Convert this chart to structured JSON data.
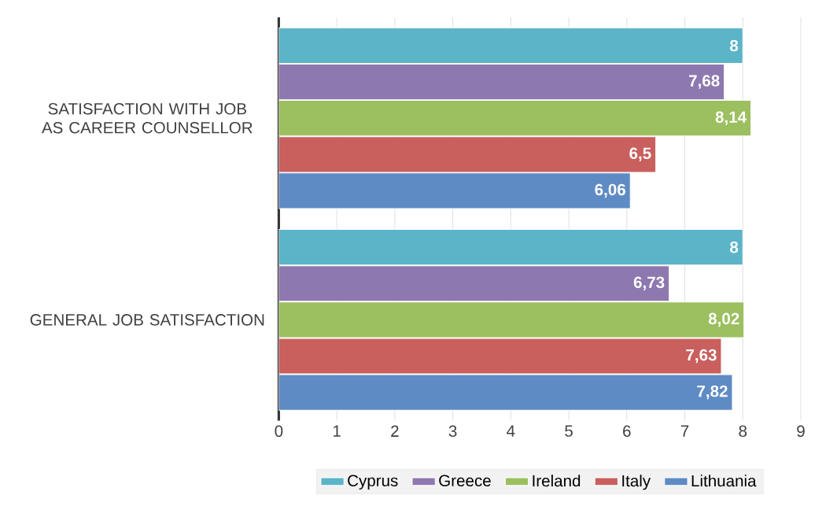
{
  "chart_data": {
    "type": "bar",
    "orientation": "horizontal",
    "categories": [
      "SATISFACTION WITH JOB AS CAREER COUNSELLOR",
      "GENERAL JOB SATISFACTION"
    ],
    "series": [
      {
        "name": "Cyprus",
        "color": "#5bb4c8",
        "values": [
          8,
          8
        ],
        "value_labels": [
          "8",
          "8"
        ]
      },
      {
        "name": "Greece",
        "color": "#8e78b0",
        "values": [
          7.68,
          6.73
        ],
        "value_labels": [
          "7,68",
          "6,73"
        ]
      },
      {
        "name": "Ireland",
        "color": "#9cbf60",
        "values": [
          8.14,
          8.02
        ],
        "value_labels": [
          "8,14",
          "8,02"
        ]
      },
      {
        "name": "Italy",
        "color": "#c9605e",
        "values": [
          6.5,
          7.63
        ],
        "value_labels": [
          "6,5",
          "7,63"
        ]
      },
      {
        "name": "Lithuania",
        "color": "#5f8bc4",
        "values": [
          6.06,
          7.82
        ],
        "value_labels": [
          "6,06",
          "7,82"
        ]
      }
    ],
    "xlim": [
      0,
      9
    ],
    "xticks": [
      0,
      1,
      2,
      3,
      4,
      5,
      6,
      7,
      8,
      9
    ],
    "grid": "x",
    "legend": "bottom"
  }
}
